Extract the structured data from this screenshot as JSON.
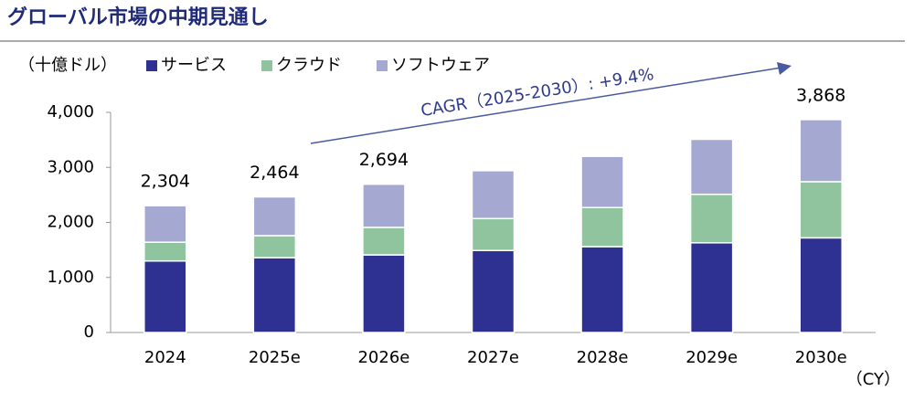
{
  "chart_data": {
    "type": "stacked_bar",
    "title": "グローバル市場の中期見通し",
    "y_unit": "（十億ドル）",
    "x_unit": "（CY）",
    "annotation": "CAGR（2025-2030）: +9.4%",
    "categories": [
      "2024",
      "2025e",
      "2026e",
      "2027e",
      "2028e",
      "2029e",
      "2030e"
    ],
    "series": [
      {
        "name": "サービス",
        "color": "#2e3192",
        "values": [
          1300,
          1360,
          1410,
          1490,
          1560,
          1630,
          1720
        ]
      },
      {
        "name": "クラウド",
        "color": "#8fc49f",
        "values": [
          340,
          400,
          500,
          580,
          710,
          880,
          1020
        ]
      },
      {
        "name": "ソフトウェア",
        "color": "#a5a8d0",
        "values": [
          664,
          704,
          784,
          870,
          930,
          1000,
          1128
        ]
      }
    ],
    "totals": [
      2304,
      2464,
      2694,
      null,
      null,
      null,
      3868
    ],
    "total_labels": [
      "2,304",
      "2,464",
      "2,694",
      null,
      null,
      null,
      "3,868"
    ],
    "ylim": [
      0,
      4000
    ],
    "yticks": [
      0,
      {
        "value": 1000,
        "label": "1,000"
      },
      {
        "value": 2000,
        "label": "2,000"
      },
      {
        "value": 3000,
        "label": "3,000"
      },
      {
        "value": 4000,
        "label": "4,000"
      }
    ]
  }
}
